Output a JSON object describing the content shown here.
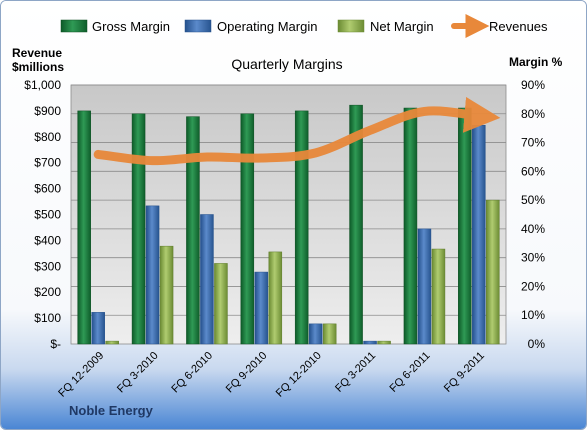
{
  "chart_data": {
    "type": "bar",
    "title": "Quarterly Margins",
    "left_axis_label": [
      "Revenue",
      "$millions"
    ],
    "right_axis_label": "Margin %",
    "footer": "Noble Energy",
    "categories": [
      "FQ 12-2009",
      "FQ 3-2010",
      "FQ 6-2010",
      "FQ 9-2010",
      "FQ 12-2010",
      "FQ 3-2011",
      "FQ 6-2011",
      "FQ 9-2011"
    ],
    "left_ticks": [
      "$-",
      "$100",
      "$200",
      "$300",
      "$400",
      "$500",
      "$600",
      "$700",
      "$800",
      "$900",
      "$1,000"
    ],
    "right_ticks": [
      "0%",
      "10%",
      "20%",
      "30%",
      "40%",
      "50%",
      "60%",
      "70%",
      "80%",
      "90%"
    ],
    "ylim_margin_pct": [
      0,
      90
    ],
    "ylim_revenue": [
      0,
      1000
    ],
    "grid": true,
    "legend_position": "top",
    "series": [
      {
        "name": "Gross Margin",
        "axis": "right",
        "color": "#1f7a3e",
        "values": [
          81,
          80,
          79,
          80,
          81,
          83,
          82,
          82
        ]
      },
      {
        "name": "Operating Margin",
        "axis": "right",
        "color": "#3d6fb0",
        "values": [
          11,
          48,
          45,
          25,
          7,
          1,
          40,
          76
        ]
      },
      {
        "name": "Net Margin",
        "axis": "right",
        "color": "#8fb04e",
        "values": [
          1,
          34,
          28,
          32,
          7,
          1,
          33,
          50
        ]
      },
      {
        "name": "Revenues",
        "axis": "left",
        "color": "#e8883a",
        "values": [
          732,
          708,
          722,
          718,
          738,
          825,
          898,
          880
        ]
      }
    ]
  }
}
